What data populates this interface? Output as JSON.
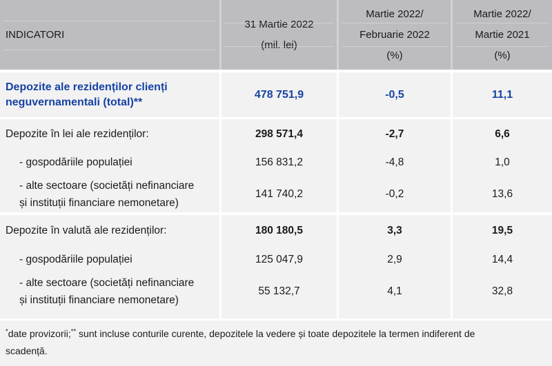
{
  "table": {
    "header": {
      "indicators": "INDICATORI",
      "col_date": [
        "31 Martie 2022",
        "(mil. lei)"
      ],
      "col_mom": [
        "Martie 2022/",
        "Februarie 2022",
        "(%)"
      ],
      "col_yoy": [
        "Martie 2022/",
        "Martie 2021",
        "(%)"
      ]
    },
    "total_row": {
      "label_lines": [
        "Depozite ale rezidenților clienți",
        "neguvernamentali (total)**"
      ],
      "amount": "478 751,9",
      "mom": "-0,5",
      "yoy": "11,1"
    },
    "sections": [
      {
        "title": "Depozite în lei ale rezidenților:",
        "amount": "298 571,4",
        "mom": "-2,7",
        "yoy": "6,6",
        "rows": [
          {
            "label_lines": [
              "- gospodăriile populației"
            ],
            "amount": "156 831,2",
            "mom": "-4,8",
            "yoy": "1,0"
          },
          {
            "label_lines": [
              "- alte sectoare (societăți nefinanciare",
              "și instituții financiare nemonetare)"
            ],
            "amount": "141 740,2",
            "mom": "-0,2",
            "yoy": "13,6"
          }
        ]
      },
      {
        "title": "Depozite în valută ale rezidenților:",
        "amount": "180 180,5",
        "mom": "3,3",
        "yoy": "19,5",
        "rows": [
          {
            "label_lines": [
              "- gospodăriile populației"
            ],
            "amount": "125 047,9",
            "mom": "2,9",
            "yoy": "14,4"
          },
          {
            "label_lines": [
              "- alte sectoare (societăți nefinanciare",
              "și instituții financiare nemonetare)"
            ],
            "amount": "55 132,7",
            "mom": "4,1",
            "yoy": "32,8"
          }
        ]
      }
    ],
    "footnote": {
      "sup1": "*",
      "part1": "date provizorii;",
      "sup2": "**",
      "part2": " sunt incluse conturile curente, depozitele la vedere și toate depozitele la termen indiferent de",
      "line2": "scadență."
    },
    "colors": {
      "header_bg": "#bdbdc0",
      "band_bg": "#f2f2f2",
      "accent_blue": "#1642a4"
    }
  }
}
